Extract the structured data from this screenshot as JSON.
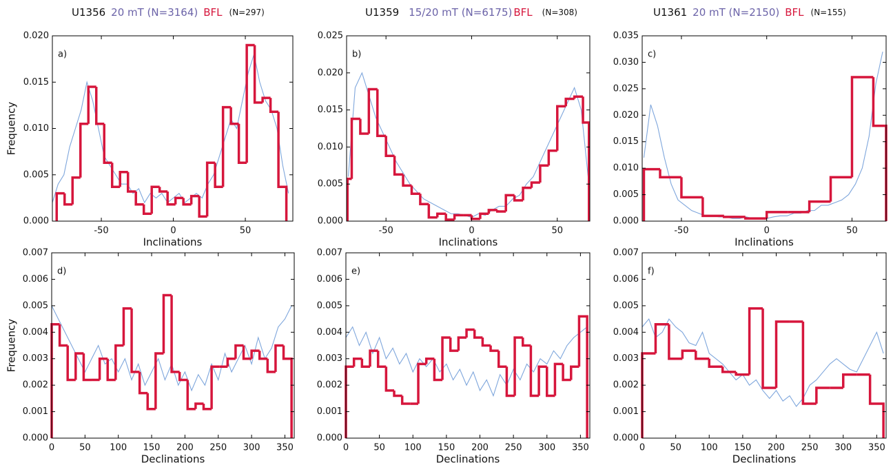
{
  "headers": [
    {
      "site": "U1356",
      "blue": "20 mT (N=3164)",
      "red": "BFL",
      "n": "(N=297)"
    },
    {
      "site": "U1359",
      "blue": "15/20 mT (N=6175)",
      "red": "BFL",
      "n": "(N=308)"
    },
    {
      "site": "U1361",
      "blue": "20 mT (N=2150)",
      "red": "BFL",
      "n": "(N=155)"
    }
  ],
  "chart_data": [
    {
      "type": "histogram",
      "label": "a)",
      "xlabel": "Inclinations",
      "ylabel": "Frequency",
      "color": "#d6163c",
      "xlim": [
        -84,
        83
      ],
      "ylim": [
        0,
        0.02
      ],
      "xticks": [
        -50,
        0,
        50
      ],
      "yticks": [
        {
          "value": 0,
          "label": "0.000"
        },
        {
          "value": 0.005,
          "label": "0.005"
        },
        {
          "value": 0.01,
          "label": "0.010"
        },
        {
          "value": 0.015,
          "label": "0.015"
        },
        {
          "value": 0.02,
          "label": "0.020"
        }
      ],
      "bins": [
        -81,
        -75.5,
        -70,
        -64.5,
        -59,
        -53.5,
        -48,
        -42.5,
        -37,
        -31.5,
        -26,
        -20.5,
        -15,
        -9.5,
        -4,
        1.5,
        7,
        12.5,
        18,
        23.5,
        29,
        34.5,
        40,
        45.5,
        51,
        56.5,
        62,
        67.5,
        73,
        78.5
      ],
      "values": [
        0.003,
        0.0018,
        0.0047,
        0.0105,
        0.0145,
        0.0105,
        0.0063,
        0.0037,
        0.0053,
        0.0032,
        0.0018,
        0.0008,
        0.0037,
        0.0032,
        0.0018,
        0.0025,
        0.0018,
        0.0027,
        0.0005,
        0.0063,
        0.0037,
        0.0123,
        0.0105,
        0.0063,
        0.019,
        0.0128,
        0.0133,
        0.0118,
        0.0037
      ],
      "line": {
        "color": "#7ea6dc",
        "x": [
          -84,
          -80,
          -76,
          -72,
          -68,
          -64,
          -60,
          -56,
          -52,
          -48,
          -44,
          -40,
          -36,
          -32,
          -28,
          -24,
          -20,
          -16,
          -12,
          -8,
          -4,
          0,
          4,
          8,
          12,
          16,
          20,
          24,
          28,
          32,
          36,
          40,
          44,
          48,
          52,
          56,
          60,
          64,
          68,
          72,
          76,
          80
        ],
        "values": [
          0.002,
          0.004,
          0.005,
          0.008,
          0.01,
          0.012,
          0.015,
          0.013,
          0.01,
          0.007,
          0.006,
          0.005,
          0.004,
          0.004,
          0.003,
          0.0035,
          0.002,
          0.003,
          0.0025,
          0.003,
          0.002,
          0.0025,
          0.003,
          0.002,
          0.0025,
          0.003,
          0.0025,
          0.004,
          0.005,
          0.007,
          0.009,
          0.011,
          0.01,
          0.013,
          0.016,
          0.018,
          0.015,
          0.013,
          0.012,
          0.01,
          0.006,
          0.003
        ]
      }
    },
    {
      "type": "histogram",
      "label": "b)",
      "xlabel": "Inclinations",
      "color": "#d6163c",
      "xlim": [
        -73,
        69
      ],
      "ylim": [
        0,
        0.025
      ],
      "xticks": [
        -50,
        0,
        50
      ],
      "yticks": [
        {
          "value": 0,
          "label": "0.000"
        },
        {
          "value": 0.005,
          "label": "0.005"
        },
        {
          "value": 0.01,
          "label": "0.010"
        },
        {
          "value": 0.015,
          "label": "0.015"
        },
        {
          "value": 0.02,
          "label": "0.020"
        },
        {
          "value": 0.025,
          "label": "0.025"
        }
      ],
      "bins": [
        -72.5,
        -70,
        -65,
        -60,
        -55,
        -50,
        -45,
        -40,
        -35,
        -30,
        -25,
        -20,
        -15,
        -10,
        -5,
        0,
        5,
        10,
        15,
        20,
        25,
        30,
        35,
        40,
        45,
        50,
        55,
        60,
        65,
        68.5
      ],
      "values": [
        0.0057,
        0.0138,
        0.0118,
        0.0178,
        0.0115,
        0.0088,
        0.0063,
        0.0048,
        0.0037,
        0.0023,
        0.0005,
        0.001,
        0.0002,
        0.0008,
        0.0008,
        0.0003,
        0.001,
        0.0015,
        0.0013,
        0.0035,
        0.0028,
        0.0045,
        0.0052,
        0.0075,
        0.0095,
        0.0155,
        0.0165,
        0.0168,
        0.0133
      ],
      "line": {
        "color": "#7ea6dc",
        "x": [
          -72,
          -68,
          -64,
          -60,
          -56,
          -52,
          -48,
          -44,
          -40,
          -36,
          -32,
          -28,
          -24,
          -20,
          -16,
          -12,
          -8,
          -4,
          0,
          4,
          8,
          12,
          16,
          20,
          24,
          28,
          32,
          36,
          40,
          44,
          48,
          52,
          56,
          60,
          64,
          68
        ],
        "values": [
          0.006,
          0.018,
          0.02,
          0.017,
          0.014,
          0.012,
          0.01,
          0.008,
          0.0065,
          0.005,
          0.004,
          0.003,
          0.0025,
          0.002,
          0.0015,
          0.001,
          0.001,
          0.0008,
          0.0005,
          0.001,
          0.0008,
          0.0015,
          0.002,
          0.002,
          0.003,
          0.0035,
          0.005,
          0.006,
          0.008,
          0.01,
          0.012,
          0.014,
          0.016,
          0.018,
          0.015,
          0.006
        ]
      }
    },
    {
      "type": "histogram",
      "label": "c)",
      "xlabel": "Inclinations",
      "color": "#d6163c",
      "xlim": [
        -73,
        70
      ],
      "ylim": [
        0,
        0.035
      ],
      "xticks": [
        -50,
        0,
        50
      ],
      "yticks": [
        {
          "value": 0,
          "label": "0.000"
        },
        {
          "value": 0.005,
          "label": "0.005"
        },
        {
          "value": 0.01,
          "label": "0.010"
        },
        {
          "value": 0.015,
          "label": "0.015"
        },
        {
          "value": 0.02,
          "label": "0.020"
        },
        {
          "value": 0.025,
          "label": "0.025"
        },
        {
          "value": 0.03,
          "label": "0.030"
        },
        {
          "value": 0.035,
          "label": "0.035"
        }
      ],
      "bins": [
        -72,
        -62.5,
        -50,
        -37.5,
        -25,
        -12.5,
        0,
        12.5,
        25,
        37.5,
        50,
        62.5,
        70
      ],
      "values": [
        0.0098,
        0.0083,
        0.0045,
        0.001,
        0.0008,
        0.0005,
        0.0017,
        0.0017,
        0.0037,
        0.0083,
        0.0272,
        0.018
      ],
      "line": {
        "color": "#7ea6dc",
        "x": [
          -72,
          -68,
          -64,
          -60,
          -56,
          -52,
          -48,
          -44,
          -40,
          -36,
          -32,
          -28,
          -24,
          -20,
          -16,
          -12,
          -8,
          -4,
          0,
          4,
          8,
          12,
          16,
          20,
          24,
          28,
          32,
          36,
          40,
          44,
          48,
          52,
          56,
          60,
          64,
          68
        ],
        "values": [
          0.012,
          0.022,
          0.018,
          0.012,
          0.007,
          0.004,
          0.003,
          0.002,
          0.0015,
          0.001,
          0.001,
          0.0008,
          0.0008,
          0.0005,
          0.0005,
          0.0008,
          0.0005,
          0.0005,
          0.0005,
          0.0008,
          0.001,
          0.001,
          0.0015,
          0.0015,
          0.002,
          0.002,
          0.003,
          0.003,
          0.0035,
          0.004,
          0.005,
          0.007,
          0.01,
          0.016,
          0.026,
          0.032
        ]
      }
    },
    {
      "type": "histogram",
      "label": "d)",
      "xlabel": "Declinations",
      "ylabel": "Frequency",
      "color": "#d6163c",
      "xlim": [
        0,
        364
      ],
      "ylim": [
        0,
        0.007
      ],
      "xticks": [
        0,
        50,
        100,
        150,
        200,
        250,
        300,
        350
      ],
      "yticks": [
        {
          "value": 0,
          "label": "0.000"
        },
        {
          "value": 0.001,
          "label": "0.001"
        },
        {
          "value": 0.002,
          "label": "0.002"
        },
        {
          "value": 0.003,
          "label": "0.003"
        },
        {
          "value": 0.004,
          "label": "0.004"
        },
        {
          "value": 0.005,
          "label": "0.005"
        },
        {
          "value": 0.006,
          "label": "0.006"
        },
        {
          "value": 0.007,
          "label": "0.007"
        }
      ],
      "bins": [
        0,
        12,
        24,
        36,
        48,
        60,
        72,
        84,
        96,
        108,
        120,
        132,
        144,
        156,
        168,
        180,
        192,
        204,
        216,
        228,
        240,
        252,
        264,
        276,
        288,
        300,
        312,
        324,
        336,
        348,
        360
      ],
      "values": [
        0.0043,
        0.0035,
        0.0022,
        0.0032,
        0.0022,
        0.0022,
        0.003,
        0.0022,
        0.0035,
        0.0049,
        0.0025,
        0.0017,
        0.0011,
        0.0032,
        0.0054,
        0.0025,
        0.0022,
        0.0011,
        0.0013,
        0.0011,
        0.0027,
        0.0027,
        0.003,
        0.0035,
        0.003,
        0.0033,
        0.003,
        0.0025,
        0.0035,
        0.003
      ],
      "line": {
        "color": "#7ea6dc",
        "x": [
          0,
          10,
          20,
          30,
          40,
          50,
          60,
          70,
          80,
          90,
          100,
          110,
          120,
          130,
          140,
          150,
          160,
          170,
          180,
          190,
          200,
          210,
          220,
          230,
          240,
          250,
          260,
          270,
          280,
          290,
          300,
          310,
          320,
          330,
          340,
          350,
          360
        ],
        "values": [
          0.005,
          0.0045,
          0.004,
          0.0035,
          0.003,
          0.0025,
          0.003,
          0.0035,
          0.0028,
          0.003,
          0.0025,
          0.003,
          0.0022,
          0.0028,
          0.002,
          0.0025,
          0.003,
          0.0022,
          0.0028,
          0.002,
          0.0025,
          0.0018,
          0.0024,
          0.002,
          0.0028,
          0.0022,
          0.0032,
          0.0025,
          0.003,
          0.0035,
          0.0028,
          0.0038,
          0.003,
          0.0034,
          0.0042,
          0.0045,
          0.005
        ]
      }
    },
    {
      "type": "histogram",
      "label": "e)",
      "xlabel": "Declinations",
      "color": "#d6163c",
      "xlim": [
        0,
        364
      ],
      "ylim": [
        0,
        0.007
      ],
      "xticks": [
        0,
        50,
        100,
        150,
        200,
        250,
        300,
        350
      ],
      "yticks": [
        {
          "value": 0,
          "label": "0.000"
        },
        {
          "value": 0.001,
          "label": "0.001"
        },
        {
          "value": 0.002,
          "label": "0.002"
        },
        {
          "value": 0.003,
          "label": "0.003"
        },
        {
          "value": 0.004,
          "label": "0.004"
        },
        {
          "value": 0.005,
          "label": "0.005"
        },
        {
          "value": 0.006,
          "label": "0.006"
        },
        {
          "value": 0.007,
          "label": "0.007"
        }
      ],
      "bins": [
        0,
        12,
        24,
        36,
        48,
        60,
        72,
        84,
        96,
        108,
        120,
        132,
        144,
        156,
        168,
        180,
        192,
        204,
        216,
        228,
        240,
        252,
        264,
        276,
        288,
        300,
        312,
        324,
        336,
        348,
        360
      ],
      "values": [
        0.0027,
        0.003,
        0.0027,
        0.0033,
        0.0027,
        0.0018,
        0.0016,
        0.0013,
        0.0013,
        0.0028,
        0.003,
        0.0022,
        0.0038,
        0.0033,
        0.0038,
        0.0041,
        0.0038,
        0.0035,
        0.0033,
        0.0027,
        0.0016,
        0.0038,
        0.0035,
        0.0016,
        0.0027,
        0.0016,
        0.0028,
        0.0022,
        0.0027,
        0.0046
      ],
      "line": {
        "color": "#7ea6dc",
        "x": [
          0,
          10,
          20,
          30,
          40,
          50,
          60,
          70,
          80,
          90,
          100,
          110,
          120,
          130,
          140,
          150,
          160,
          170,
          180,
          190,
          200,
          210,
          220,
          230,
          240,
          250,
          260,
          270,
          280,
          290,
          300,
          310,
          320,
          330,
          340,
          350,
          360
        ],
        "values": [
          0.0038,
          0.0042,
          0.0035,
          0.004,
          0.0032,
          0.0038,
          0.003,
          0.0034,
          0.0028,
          0.0032,
          0.0025,
          0.003,
          0.0027,
          0.003,
          0.0025,
          0.0028,
          0.0022,
          0.0026,
          0.002,
          0.0025,
          0.0018,
          0.0022,
          0.0016,
          0.0024,
          0.002,
          0.0026,
          0.0022,
          0.0028,
          0.0025,
          0.003,
          0.0028,
          0.0033,
          0.003,
          0.0035,
          0.0038,
          0.004,
          0.0042
        ]
      }
    },
    {
      "type": "histogram",
      "label": "f)",
      "xlabel": "Declinations",
      "color": "#d6163c",
      "xlim": [
        0,
        364
      ],
      "ylim": [
        0,
        0.007
      ],
      "xticks": [
        0,
        50,
        100,
        150,
        200,
        250,
        300,
        350
      ],
      "yticks": [
        {
          "value": 0,
          "label": "0.000"
        },
        {
          "value": 0.001,
          "label": "0.001"
        },
        {
          "value": 0.002,
          "label": "0.002"
        },
        {
          "value": 0.003,
          "label": "0.003"
        },
        {
          "value": 0.004,
          "label": "0.004"
        },
        {
          "value": 0.005,
          "label": "0.005"
        },
        {
          "value": 0.006,
          "label": "0.006"
        },
        {
          "value": 0.007,
          "label": "0.007"
        }
      ],
      "bins": [
        0,
        20,
        40,
        60,
        80,
        100,
        120,
        140,
        160,
        180,
        200,
        220,
        240,
        260,
        280,
        300,
        320,
        340,
        360
      ],
      "values": [
        0.0032,
        0.0043,
        0.003,
        0.0033,
        0.003,
        0.0027,
        0.0025,
        0.0024,
        0.0049,
        0.0019,
        0.0044,
        0.0044,
        0.0013,
        0.0019,
        0.0019,
        0.0024,
        0.0024,
        0.0013
      ],
      "line": {
        "color": "#7ea6dc",
        "x": [
          0,
          10,
          20,
          30,
          40,
          50,
          60,
          70,
          80,
          90,
          100,
          110,
          120,
          130,
          140,
          150,
          160,
          170,
          180,
          190,
          200,
          210,
          220,
          230,
          240,
          250,
          260,
          270,
          280,
          290,
          300,
          310,
          320,
          330,
          340,
          350,
          360
        ],
        "values": [
          0.0042,
          0.0045,
          0.0038,
          0.004,
          0.0045,
          0.0042,
          0.004,
          0.0036,
          0.0035,
          0.004,
          0.0032,
          0.003,
          0.0028,
          0.0025,
          0.0022,
          0.0024,
          0.002,
          0.0022,
          0.0018,
          0.0015,
          0.0018,
          0.0014,
          0.0016,
          0.0012,
          0.0015,
          0.002,
          0.0022,
          0.0025,
          0.0028,
          0.003,
          0.0028,
          0.0026,
          0.0025,
          0.003,
          0.0035,
          0.004,
          0.0032
        ]
      }
    }
  ]
}
